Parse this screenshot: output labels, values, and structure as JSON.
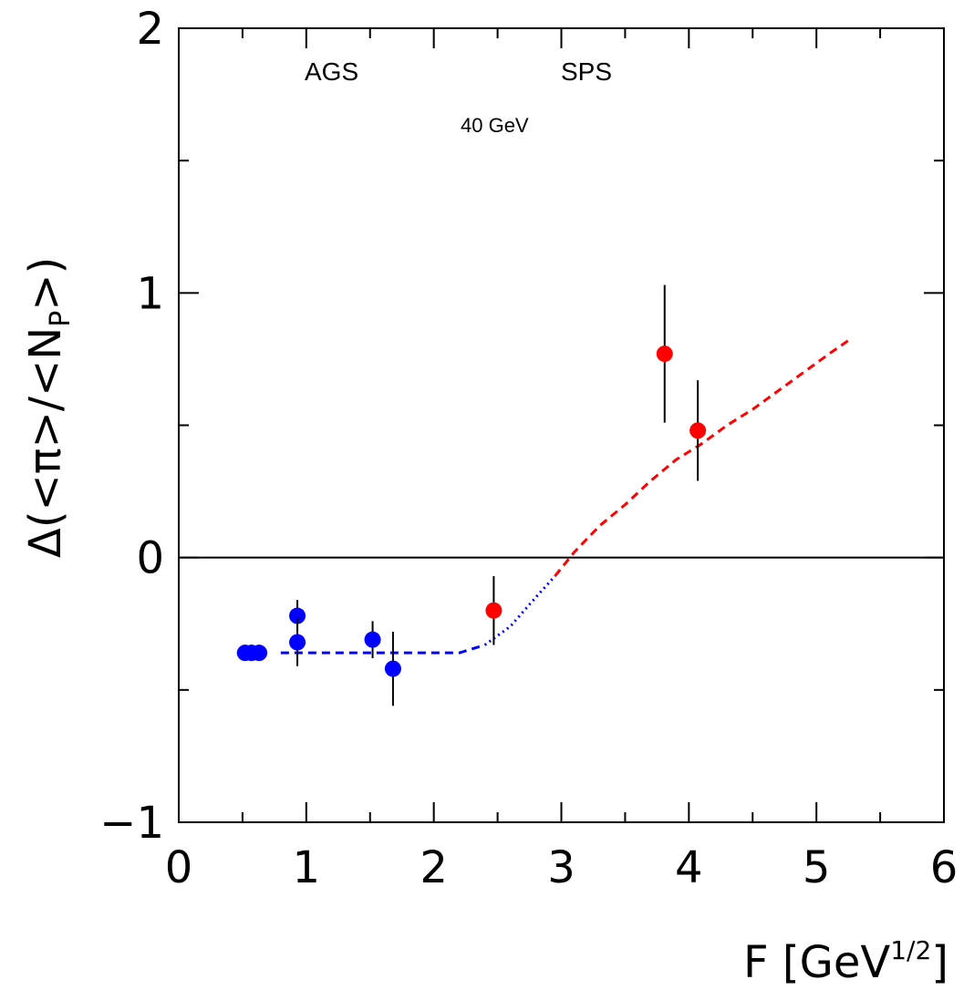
{
  "chart_data": {
    "type": "scatter",
    "title": "",
    "xlabel": "F [GeV",
    "xlabel_sup": "1/2",
    "xlabel_close": "]",
    "ylabel": "Δ(<π>/<N",
    "ylabel_sub": "P",
    "ylabel_close": ">)",
    "xlim": [
      0,
      6
    ],
    "ylim": [
      -1,
      2
    ],
    "x_ticks": [
      "0",
      "1",
      "2",
      "3",
      "4",
      "5",
      "6"
    ],
    "y_ticks": [
      "−1",
      "0",
      "1",
      "2"
    ],
    "grid": false,
    "annotations": [
      "AGS",
      "SPS",
      "40 GeV"
    ],
    "series": [
      {
        "color": "#0000ff",
        "points": [
          {
            "x": 0.52,
            "y": -0.36,
            "err": 0
          },
          {
            "x": 0.57,
            "y": -0.36,
            "err": 0
          },
          {
            "x": 0.63,
            "y": -0.36,
            "err": 0
          },
          {
            "x": 0.93,
            "y": -0.22,
            "err": 0.06
          },
          {
            "x": 0.93,
            "y": -0.32,
            "err": 0.09
          },
          {
            "x": 1.52,
            "y": -0.31,
            "err": 0.07
          },
          {
            "x": 1.68,
            "y": -0.42,
            "err": 0.14
          }
        ]
      },
      {
        "color": "#ff0000",
        "points": [
          {
            "x": 2.47,
            "y": -0.2,
            "err": 0.13
          },
          {
            "x": 3.81,
            "y": 0.77,
            "err": 0.26
          },
          {
            "x": 4.07,
            "y": 0.48,
            "err": 0.19
          }
        ]
      }
    ],
    "curves": [
      {
        "color": "#0000ff",
        "style": "dashed",
        "x": [
          0.8,
          2.2,
          2.4
        ],
        "y": [
          -0.36,
          -0.36,
          -0.33
        ]
      },
      {
        "color": "#0000ff",
        "style": "dotted",
        "x": [
          2.4,
          2.6,
          2.8,
          2.95
        ],
        "y": [
          -0.33,
          -0.26,
          -0.15,
          -0.07
        ]
      },
      {
        "color": "#ff0000",
        "style": "dashed",
        "x": [
          2.95,
          3.1,
          3.3,
          3.5,
          3.7,
          3.9,
          4.1,
          4.3,
          4.5,
          4.7,
          4.9,
          5.1,
          5.28
        ],
        "y": [
          -0.07,
          0.02,
          0.12,
          0.2,
          0.29,
          0.37,
          0.43,
          0.5,
          0.56,
          0.63,
          0.7,
          0.77,
          0.83
        ]
      }
    ]
  }
}
